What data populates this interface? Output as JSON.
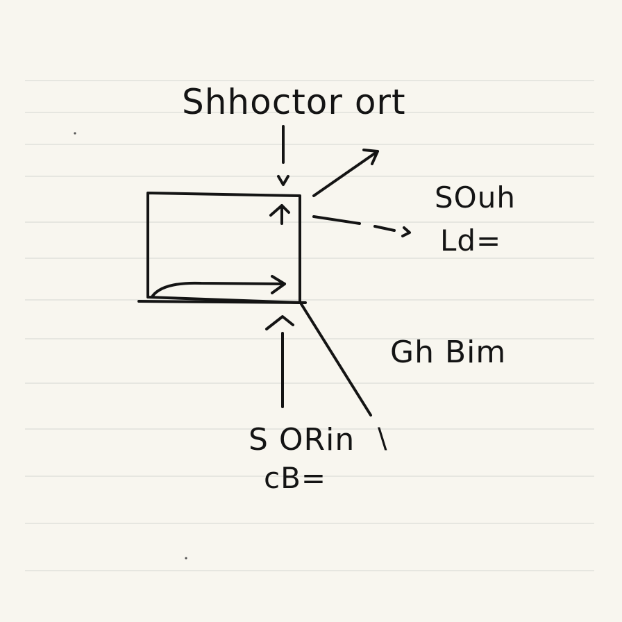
{
  "labels": {
    "top": "Shhoctor ort",
    "right_line1": "SOuh",
    "right_line2": "Ld=",
    "middle": "Gh Bim",
    "bottom_line1": "S ORin",
    "bottom_line2": "cB=",
    "tick": "\\"
  },
  "colors": {
    "paper": "#f8f6ef",
    "rule": "#dcdcd8",
    "ink": "#141414"
  }
}
